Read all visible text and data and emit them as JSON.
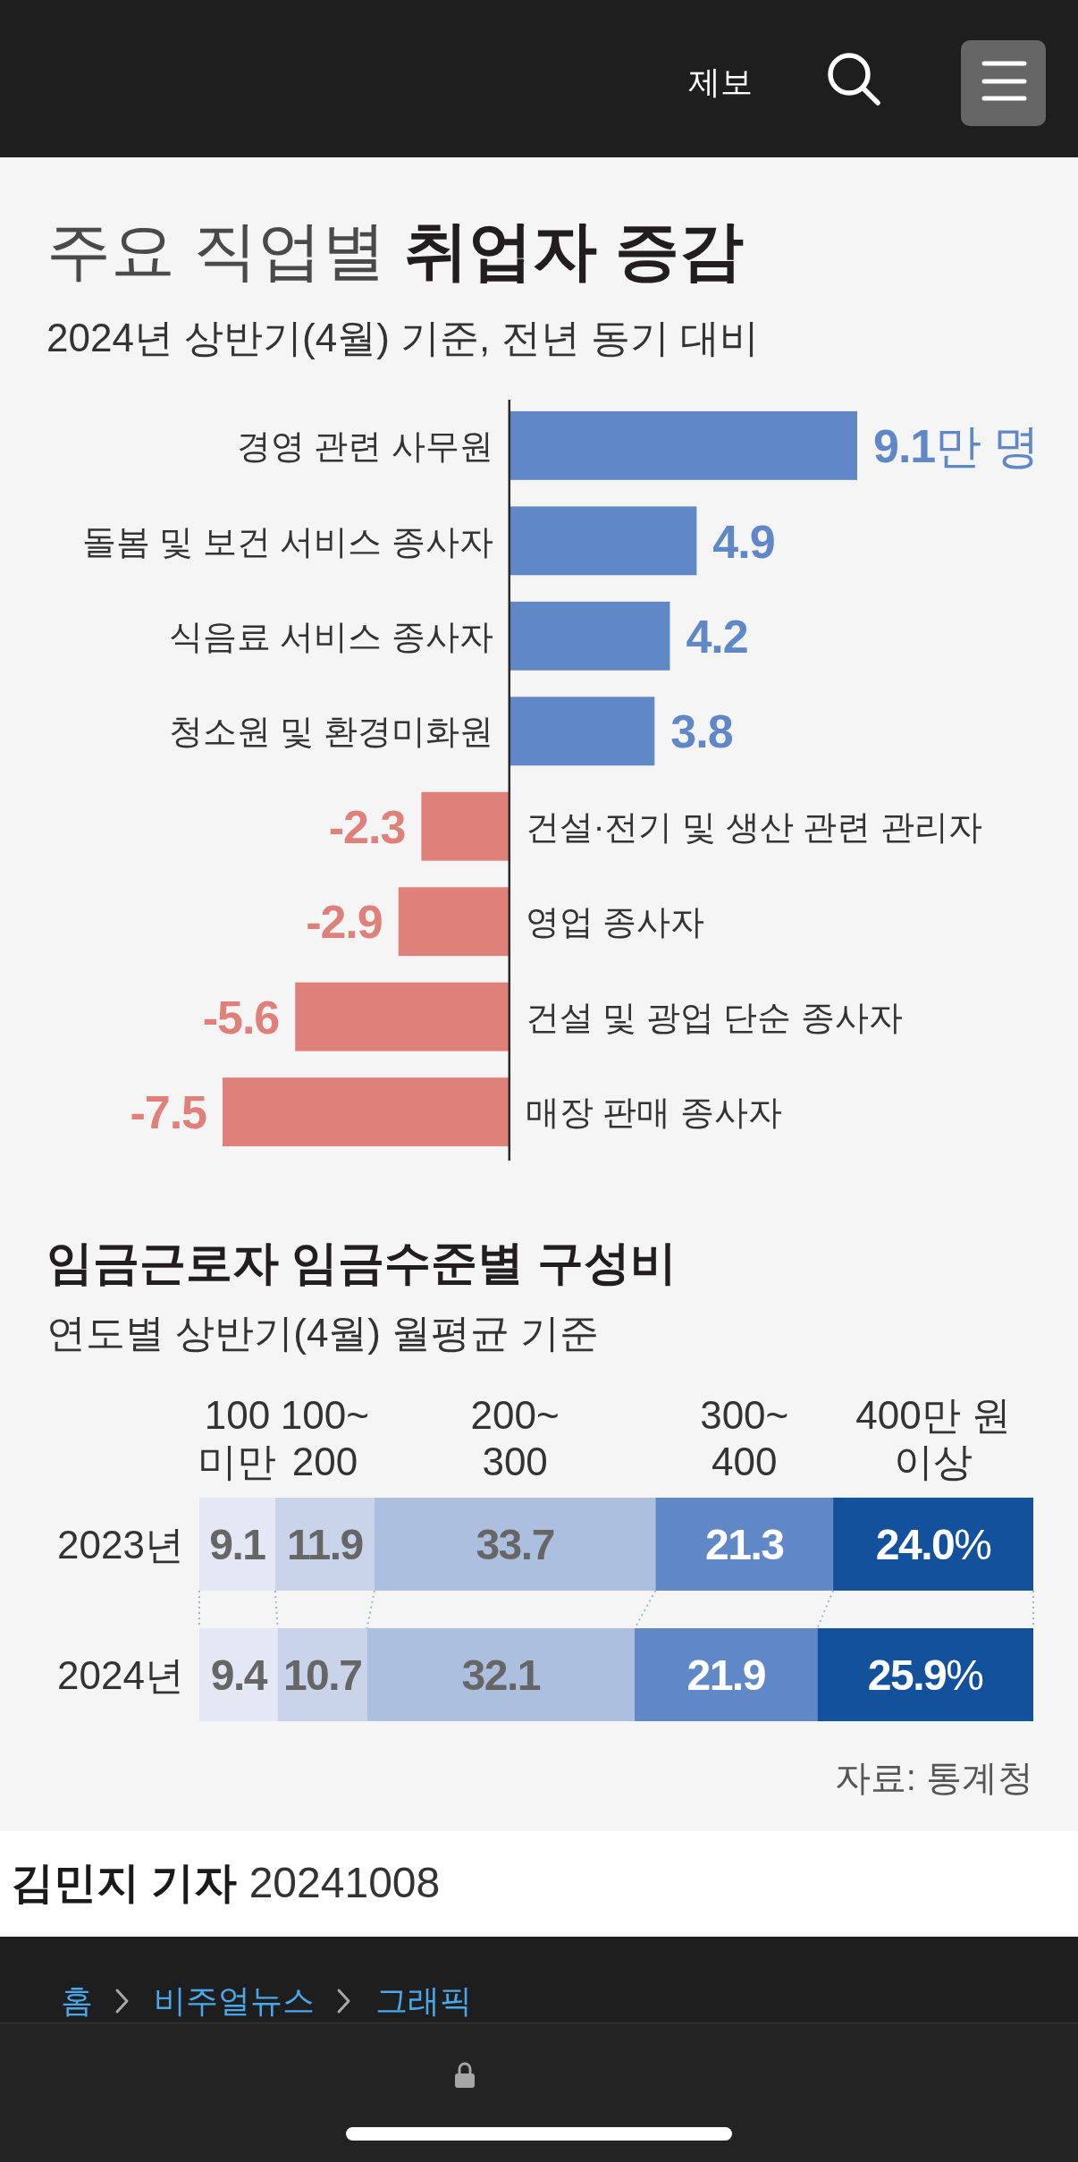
{
  "chart_data": [
    {
      "type": "bar",
      "orientation": "horizontal",
      "title": "주요 직업별 취업자 증감",
      "subtitle": "2024년 상반기(4월) 기준, 전년 동기 대비",
      "categories": [
        "경영 관련 사무원",
        "돌봄 및 보건 서비스 종사자",
        "식음료 서비스 종사자",
        "청소원 및 환경미화원",
        "건설·전기 및 생산 관련 관리자",
        "영업 종사자",
        "건설 및 광업 단순 종사자",
        "매장 판매 종사자"
      ],
      "values": [
        9.1,
        4.9,
        4.2,
        3.8,
        -2.3,
        -2.9,
        -5.6,
        -7.5
      ],
      "colors": [
        "#6088c6",
        "#6088c6",
        "#6088c6",
        "#6088c6",
        "#e0807b",
        "#e0807b",
        "#e0807b",
        "#e0807b"
      ],
      "value_labels": [
        "9.1만 명",
        "4.9",
        "4.2",
        "3.8",
        "-2.3",
        "-2.9",
        "-5.6",
        "-7.5"
      ],
      "tick_labels": "y",
      "annotations": [
        "제보"
      ]
    },
    {
      "type": "bar",
      "orientation": "horizontal",
      "stacked": true,
      "title": "임금근로자 임금수준별 구성비",
      "subtitle": "연도별 상반기(4월) 월평균 기준",
      "categories": [
        "2023년",
        "2024년"
      ],
      "series": [
        {
          "name": "100\n미만",
          "color": "#e3e8f4",
          "values": [
            9.1,
            9.4
          ],
          "value_labels": [
            "9.1",
            "9.4"
          ]
        },
        {
          "name": "100~\n200",
          "color": "#c9d4ea",
          "values": [
            11.9,
            10.7
          ],
          "value_labels": [
            "11.9",
            "10.7"
          ]
        },
        {
          "name": "200~\n300",
          "color": "#adbfdf",
          "values": [
            33.7,
            32.1
          ],
          "value_labels": [
            "33.7",
            "32.1"
          ]
        },
        {
          "name": "300~\n400",
          "color": "#6088c6",
          "values": [
            21.3,
            21.9
          ],
          "value_labels": [
            "21.3",
            "21.9"
          ]
        },
        {
          "name": "400만 원\n이상",
          "color": "#13519d",
          "values": [
            24.0,
            25.9
          ],
          "value_labels": [
            "24.0%",
            "25.9%"
          ]
        }
      ],
      "tick_labels": "y",
      "annotations": [
        "자료: 통계청",
        "김민지 기자 20241008",
        "홈",
        "비주얼뉴스",
        "그래픽"
      ]
    }
  ]
}
